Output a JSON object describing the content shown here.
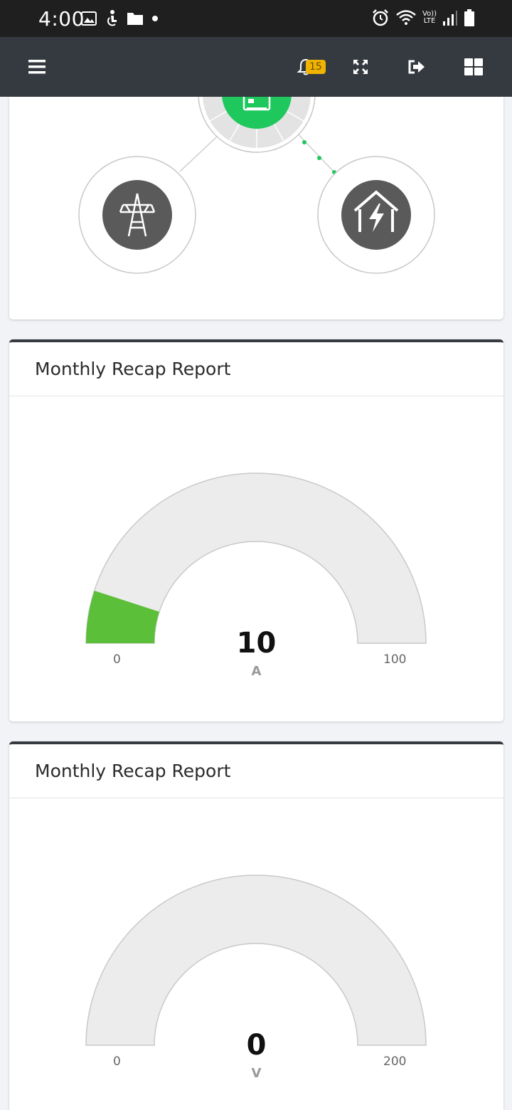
{
  "status_bar": {
    "time": "4:00",
    "lte_top": "Vo))",
    "lte_bottom": "LTE"
  },
  "toolbar": {
    "notification_count": "15"
  },
  "gauges": [
    {
      "title": "Monthly Recap Report",
      "value": "10",
      "unit": "A",
      "min": "0",
      "max": "100",
      "fill_fraction": 0.1,
      "fill_color": "#5bbf3a"
    },
    {
      "title": "Monthly Recap Report",
      "value": "0",
      "unit": "V",
      "min": "0",
      "max": "200",
      "fill_fraction": 0,
      "fill_color": "#5bbf3a"
    }
  ],
  "colors": {
    "toolbar_bg": "#343a40",
    "badge": "#f0b400",
    "inverter_green": "#1ec85c",
    "node_dark": "#5a5a5a",
    "gauge_track": "#ececec"
  }
}
